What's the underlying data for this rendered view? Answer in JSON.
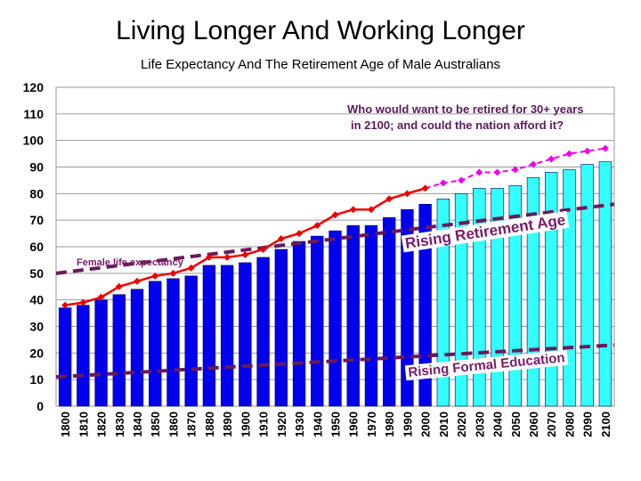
{
  "slide": {
    "title": "Living Longer And Working Longer",
    "subtitle": "Life Expectancy And The Retirement Age of Male Australians"
  },
  "chart_data": {
    "type": "bar",
    "categories": [
      "1800",
      "1810",
      "1820",
      "1830",
      "1840",
      "1850",
      "1860",
      "1870",
      "1880",
      "1890",
      "1900",
      "1910",
      "1920",
      "1930",
      "1940",
      "1950",
      "1960",
      "1970",
      "1980",
      "1990",
      "2000",
      "2010",
      "2020",
      "2030",
      "2040",
      "2050",
      "2060",
      "2070",
      "2080",
      "2090",
      "2100"
    ],
    "ylim": [
      0,
      120
    ],
    "yticks": [
      0,
      10,
      20,
      30,
      40,
      50,
      60,
      70,
      80,
      90,
      100,
      110,
      120
    ],
    "grid": true,
    "series": [
      {
        "kind": "bar",
        "values": [
          37,
          38,
          40,
          42,
          44,
          47,
          48,
          49,
          53,
          53,
          54,
          56,
          59,
          62,
          64,
          66,
          68,
          68,
          71,
          74,
          76,
          78,
          80,
          82,
          82,
          83,
          86,
          88,
          89,
          91,
          92
        ],
        "colors": {
          "historical": "#0000ee",
          "projected": "#33ffff"
        }
      },
      {
        "kind": "line",
        "name": "Female life expectancy",
        "values": [
          38,
          39,
          41,
          45,
          47,
          49,
          50,
          52,
          56,
          56,
          57,
          59,
          63,
          65,
          68,
          72,
          74,
          74,
          78,
          80,
          82,
          84,
          85,
          88,
          88,
          89,
          91,
          93,
          95,
          96,
          97
        ],
        "colors": {
          "historical": "#ee0000",
          "projected": "#ee00ee"
        }
      },
      {
        "kind": "dashed-line",
        "name": "Rising Retirement Age",
        "x": [
          "1800",
          "2100"
        ],
        "values": [
          50,
          76
        ],
        "color": "#6a1a5a"
      },
      {
        "kind": "dashed-line",
        "name": "Rising Formal Education",
        "x": [
          "1800",
          "2100"
        ],
        "values": [
          11,
          23
        ],
        "color": "#6a1a5a"
      }
    ],
    "annotations": [
      "Who would want to be retired for 30+ years",
      "in 2100; and could the nation afford it?"
    ],
    "projection_start": "2010"
  }
}
